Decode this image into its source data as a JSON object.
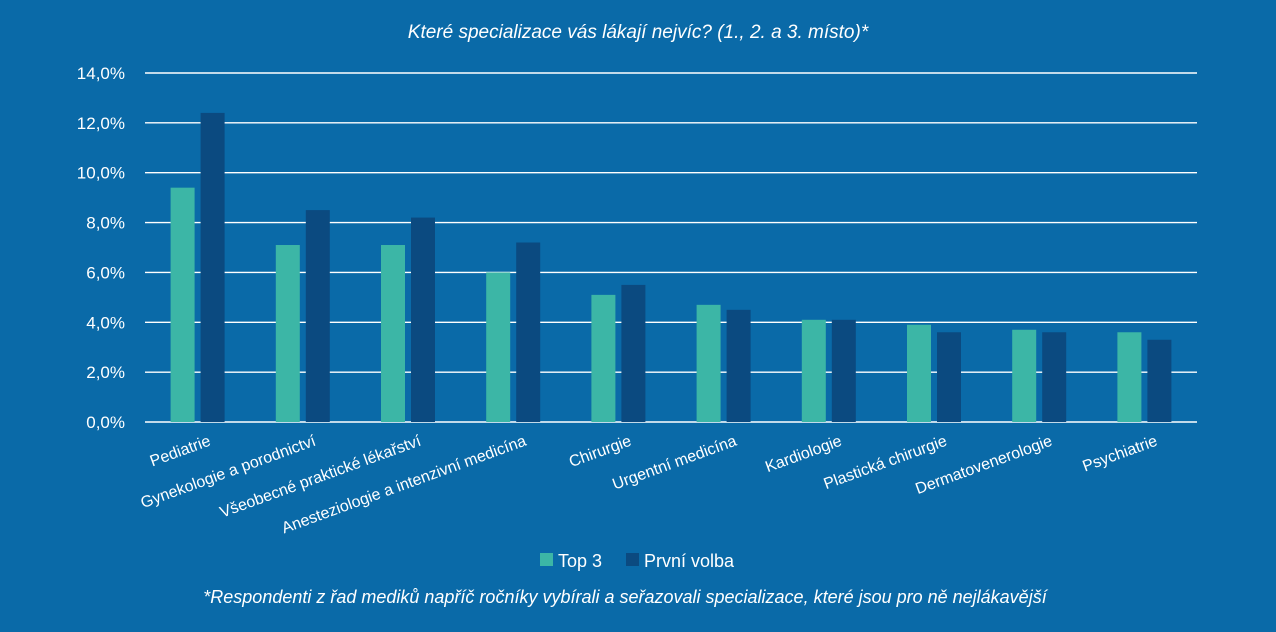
{
  "chart_data": {
    "type": "bar",
    "title": "Které specializace vás lákají nejvíc? (1., 2. a 3. místo)*",
    "categories": [
      "Pediatrie",
      "Gynekologie a porodnictví",
      "Všeobecné praktické lékařství",
      "Anesteziologie a intenzivní medicína",
      "Chirurgie",
      "Urgentní medicína",
      "Kardiologie",
      "Plastická chirurgie",
      "Dermatovenerologie",
      "Psychiatrie"
    ],
    "series": [
      {
        "name": "Top 3",
        "color": "#3cb6a6",
        "values": [
          9.4,
          7.1,
          7.1,
          6.0,
          5.1,
          4.7,
          4.1,
          3.9,
          3.7,
          3.6
        ]
      },
      {
        "name": "První volba",
        "color": "#0b4a80",
        "values": [
          12.4,
          8.5,
          8.2,
          7.2,
          5.5,
          4.5,
          4.1,
          3.6,
          3.6,
          3.3
        ]
      }
    ],
    "ylim": [
      0,
      14
    ],
    "yticks": [
      "0,0%",
      "2,0%",
      "4,0%",
      "6,0%",
      "8,0%",
      "10,0%",
      "12,0%",
      "14,0%"
    ],
    "xlabel": "",
    "ylabel": "",
    "legend_position": "bottom",
    "grid": true
  },
  "footnote": "*Respondenti z řad mediků napříč ročníky vybírali a seřazovali specializace, které jsou pro ně nejlákavější"
}
